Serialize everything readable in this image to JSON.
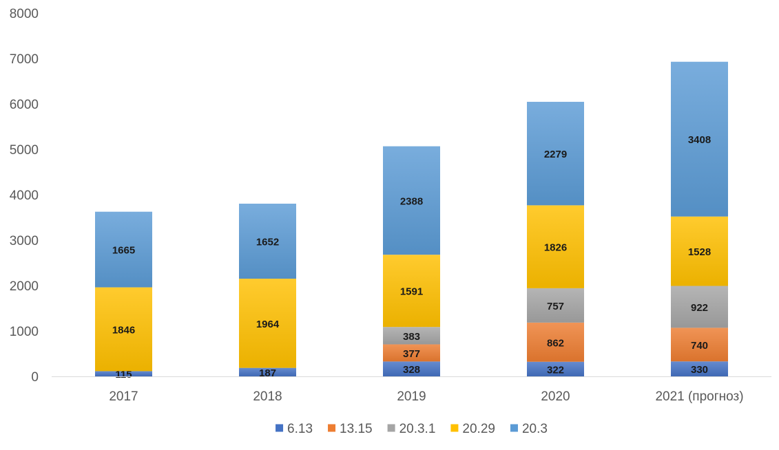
{
  "chart_data": {
    "type": "bar",
    "stacked": true,
    "categories": [
      "2017",
      "2018",
      "2019",
      "2020",
      "2021 (прогноз)"
    ],
    "series": [
      {
        "name": "6.13",
        "color": "#4472c4",
        "values": [
          115,
          187,
          328,
          322,
          330
        ]
      },
      {
        "name": "13.15",
        "color": "#ed7d31",
        "values": [
          0,
          0,
          377,
          862,
          740
        ]
      },
      {
        "name": "20.3.1",
        "color": "#a5a5a5",
        "values": [
          0,
          0,
          383,
          757,
          922
        ]
      },
      {
        "name": "20.29",
        "color": "#ffc000",
        "values": [
          1846,
          1964,
          1591,
          1826,
          1528
        ]
      },
      {
        "name": "20.3",
        "color": "#5b9bd5",
        "values": [
          1665,
          1652,
          2388,
          2279,
          3408
        ]
      }
    ],
    "ylim": [
      0,
      8000
    ],
    "yticks": [
      0,
      1000,
      2000,
      3000,
      4000,
      5000,
      6000,
      7000,
      8000
    ],
    "title": "",
    "xlabel": "",
    "ylabel": "",
    "grid": false,
    "legend": "bottom",
    "gradient_fill": true
  }
}
